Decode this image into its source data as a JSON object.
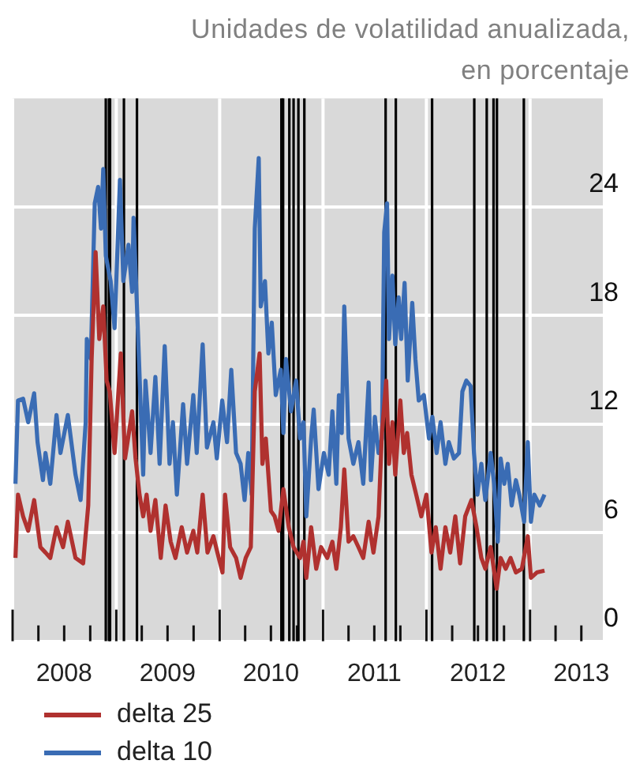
{
  "chart_data": {
    "type": "line",
    "ylabel": "Unidades de volatilidad anualizada, en porcentaje",
    "xlim": [
      "2008-01-01",
      "2013-09-15"
    ],
    "ylim": [
      0,
      30
    ],
    "yticks": [
      0,
      6,
      12,
      18,
      24
    ],
    "xticks": [
      {
        "value": "2008-01-01",
        "label": null
      },
      {
        "value": "2008-04-01",
        "label": null
      },
      {
        "value": "2008-07-01",
        "label": "2008"
      },
      {
        "value": "2008-10-01",
        "label": null
      },
      {
        "value": "2009-01-01",
        "label": null
      },
      {
        "value": "2009-04-01",
        "label": null
      },
      {
        "value": "2009-07-01",
        "label": "2009"
      },
      {
        "value": "2009-10-01",
        "label": null
      },
      {
        "value": "2010-01-01",
        "label": null
      },
      {
        "value": "2010-04-01",
        "label": null
      },
      {
        "value": "2010-07-01",
        "label": "2010"
      },
      {
        "value": "2010-10-01",
        "label": null
      },
      {
        "value": "2011-01-01",
        "label": null
      },
      {
        "value": "2011-04-01",
        "label": null
      },
      {
        "value": "2011-07-01",
        "label": "2011"
      },
      {
        "value": "2011-10-01",
        "label": null
      },
      {
        "value": "2012-01-01",
        "label": null
      },
      {
        "value": "2012-04-01",
        "label": null
      },
      {
        "value": "2012-07-01",
        "label": "2012"
      },
      {
        "value": "2012-10-01",
        "label": null
      },
      {
        "value": "2013-01-01",
        "label": null
      },
      {
        "value": "2013-04-01",
        "label": null
      },
      {
        "value": "2013-07-01",
        "label": "2013"
      }
    ],
    "grid": true,
    "legend": "bottom",
    "series": [
      {
        "name": "delta 25",
        "color": "#b0312f",
        "x": [
          "2008-01-11",
          "2008-01-20",
          "2008-02-07",
          "2008-02-25",
          "2008-03-17",
          "2008-04-08",
          "2008-04-26",
          "2008-05-13",
          "2008-06-04",
          "2008-06-27",
          "2008-07-14",
          "2008-08-10",
          "2008-09-06",
          "2008-09-24",
          "2008-10-06",
          "2008-10-20",
          "2008-11-02",
          "2008-11-16",
          "2008-11-28",
          "2008-12-09",
          "2008-12-26",
          "2009-01-17",
          "2009-02-01",
          "2009-02-26",
          "2009-03-10",
          "2009-03-24",
          "2009-04-06",
          "2009-04-18",
          "2009-05-02",
          "2009-05-19",
          "2009-06-07",
          "2009-06-24",
          "2009-07-12",
          "2009-07-29",
          "2009-08-20",
          "2009-09-08",
          "2009-09-30",
          "2009-10-14",
          "2009-11-02",
          "2009-11-19",
          "2009-12-10",
          "2009-12-24",
          "2010-01-11",
          "2010-01-20",
          "2010-02-07",
          "2010-02-28",
          "2010-03-16",
          "2010-04-03",
          "2010-04-21",
          "2010-05-05",
          "2010-05-22",
          "2010-06-01",
          "2010-06-13",
          "2010-07-01",
          "2010-07-14",
          "2010-07-28",
          "2010-08-14",
          "2010-09-02",
          "2010-09-19",
          "2010-10-12",
          "2010-10-24",
          "2010-11-03",
          "2010-11-20",
          "2010-12-08",
          "2010-12-25",
          "2011-01-16",
          "2011-02-03",
          "2011-02-17",
          "2011-03-05",
          "2011-03-17",
          "2011-04-01",
          "2011-04-18",
          "2011-05-06",
          "2011-05-23",
          "2011-06-11",
          "2011-06-28",
          "2011-07-16",
          "2011-07-28",
          "2011-08-12",
          "2011-08-22",
          "2011-09-03",
          "2011-09-13",
          "2011-10-01",
          "2011-10-13",
          "2011-10-25",
          "2011-11-09",
          "2011-11-26",
          "2011-12-14",
          "2012-01-01",
          "2012-01-19",
          "2012-02-03",
          "2012-02-20",
          "2012-03-08",
          "2012-03-25",
          "2012-04-12",
          "2012-04-29",
          "2012-05-17",
          "2012-06-08",
          "2012-06-26",
          "2012-07-13",
          "2012-07-27",
          "2012-08-15",
          "2012-09-05",
          "2012-09-19",
          "2012-10-07",
          "2012-10-24",
          "2012-11-12",
          "2012-12-03",
          "2012-12-24",
          "2013-01-04",
          "2013-01-25",
          "2013-02-21"
        ],
        "values": [
          4.6,
          8.1,
          6.9,
          6.1,
          7.8,
          5.2,
          4.9,
          4.6,
          6.3,
          5.2,
          6.6,
          4.6,
          4.3,
          7.5,
          15.6,
          21.5,
          16.7,
          18.5,
          14.4,
          13.8,
          10.4,
          15.9,
          10.1,
          12.7,
          10.1,
          8.1,
          6.9,
          8.1,
          6.1,
          7.8,
          4.6,
          7.5,
          5.5,
          4.6,
          6.3,
          4.9,
          6.1,
          4.9,
          8.1,
          4.9,
          5.8,
          4.9,
          3.8,
          8.1,
          5.2,
          4.6,
          3.5,
          4.6,
          5.2,
          13.8,
          15.9,
          9.8,
          11.2,
          7.2,
          6.9,
          6.1,
          8.4,
          6.3,
          5.2,
          4.6,
          5.5,
          3.5,
          6.3,
          4.0,
          5.2,
          4.6,
          5.5,
          4.0,
          6.3,
          9.5,
          5.5,
          5.8,
          5.2,
          4.6,
          6.6,
          4.9,
          6.9,
          11.5,
          14.4,
          9.8,
          12.1,
          9.2,
          13.3,
          10.4,
          11.5,
          9.2,
          8.1,
          6.9,
          8.1,
          4.9,
          6.3,
          4.0,
          6.3,
          4.9,
          6.9,
          4.3,
          6.9,
          7.8,
          6.3,
          4.6,
          4.0,
          5.2,
          2.9,
          4.6,
          4.0,
          4.6,
          3.8,
          4.0,
          5.8,
          3.5,
          3.8,
          3.9
        ]
      },
      {
        "name": "delta 10",
        "color": "#3a6cb4",
        "x": [
          "2008-01-11",
          "2008-01-20",
          "2008-02-07",
          "2008-02-25",
          "2008-03-17",
          "2008-03-29",
          "2008-04-17",
          "2008-04-26",
          "2008-05-13",
          "2008-06-04",
          "2008-06-18",
          "2008-07-14",
          "2008-08-10",
          "2008-08-28",
          "2008-09-15",
          "2008-09-19",
          "2008-10-03",
          "2008-10-17",
          "2008-10-29",
          "2008-11-08",
          "2008-11-16",
          "2008-11-25",
          "2008-12-12",
          "2008-12-26",
          "2009-01-14",
          "2009-01-26",
          "2009-02-13",
          "2009-02-26",
          "2009-03-03",
          "2009-03-18",
          "2009-04-06",
          "2009-04-14",
          "2009-05-02",
          "2009-05-19",
          "2009-06-03",
          "2009-06-21",
          "2009-07-08",
          "2009-07-20",
          "2009-08-03",
          "2009-08-25",
          "2009-09-08",
          "2009-09-30",
          "2009-10-12",
          "2009-11-02",
          "2009-11-17",
          "2009-12-10",
          "2009-12-22",
          "2010-01-10",
          "2010-01-27",
          "2010-02-11",
          "2010-02-28",
          "2010-03-16",
          "2010-03-30",
          "2010-04-12",
          "2010-04-24",
          "2010-05-05",
          "2010-05-19",
          "2010-05-26",
          "2010-06-10",
          "2010-06-22",
          "2010-07-04",
          "2010-07-18",
          "2010-08-05",
          "2010-08-14",
          "2010-08-23",
          "2010-09-10",
          "2010-09-28",
          "2010-10-12",
          "2010-10-24",
          "2010-11-03",
          "2010-11-20",
          "2010-11-29",
          "2010-12-16",
          "2011-01-04",
          "2011-01-21",
          "2011-02-03",
          "2011-02-17",
          "2011-02-26",
          "2011-03-08",
          "2011-03-17",
          "2011-04-01",
          "2011-04-18",
          "2011-05-06",
          "2011-05-23",
          "2011-06-11",
          "2011-06-19",
          "2011-07-03",
          "2011-07-16",
          "2011-07-28",
          "2011-08-05",
          "2011-08-15",
          "2011-08-22",
          "2011-09-03",
          "2011-09-13",
          "2011-09-25",
          "2011-10-04",
          "2011-10-16",
          "2011-10-27",
          "2011-11-12",
          "2011-11-23",
          "2011-12-05",
          "2011-12-23",
          "2012-01-10",
          "2012-01-22",
          "2012-02-06",
          "2012-02-20",
          "2012-03-08",
          "2012-03-20",
          "2012-04-07",
          "2012-04-25",
          "2012-05-07",
          "2012-05-21",
          "2012-06-05",
          "2012-06-17",
          "2012-06-29",
          "2012-07-13",
          "2012-07-27",
          "2012-08-15",
          "2012-08-27",
          "2012-09-09",
          "2012-09-19",
          "2012-10-02",
          "2012-10-14",
          "2012-10-28",
          "2012-11-12",
          "2012-11-24",
          "2012-12-11",
          "2012-12-24",
          "2013-01-04",
          "2013-01-16",
          "2013-02-04",
          "2013-02-21"
        ],
        "values": [
          8.7,
          13.3,
          13.4,
          12.1,
          13.7,
          11.0,
          8.9,
          10.4,
          8.7,
          12.5,
          10.4,
          12.5,
          9.2,
          7.8,
          12.1,
          16.7,
          15.6,
          24.2,
          25.1,
          22.8,
          26.1,
          21.3,
          19.9,
          17.3,
          25.5,
          19.9,
          21.9,
          19.3,
          23.4,
          17.3,
          9.2,
          14.4,
          10.4,
          14.6,
          9.8,
          16.3,
          9.8,
          12.1,
          8.1,
          13.1,
          9.8,
          13.6,
          10.4,
          16.4,
          10.7,
          12.1,
          10.1,
          13.3,
          11.0,
          15.0,
          10.4,
          9.8,
          7.8,
          10.4,
          8.1,
          22.8,
          26.7,
          18.5,
          19.9,
          15.9,
          17.6,
          13.6,
          15.0,
          11.5,
          15.6,
          12.7,
          14.4,
          11.2,
          12.1,
          6.9,
          11.2,
          12.8,
          8.4,
          10.4,
          9.2,
          12.7,
          8.7,
          13.6,
          11.5,
          18.5,
          11.2,
          9.8,
          11.0,
          8.7,
          14.3,
          8.9,
          12.4,
          10.4,
          11.2,
          22.6,
          24.2,
          16.7,
          20.2,
          16.4,
          19.0,
          16.7,
          19.8,
          14.4,
          18.7,
          15.6,
          13.3,
          13.6,
          11.2,
          12.4,
          10.4,
          12.1,
          9.8,
          11.0,
          10.1,
          10.4,
          13.8,
          14.4,
          14.1,
          10.4,
          8.1,
          9.8,
          7.8,
          10.4,
          8.7,
          5.5,
          10.1,
          8.7,
          9.8,
          7.5,
          8.9,
          8.1,
          6.6,
          11.0,
          6.6,
          8.1,
          7.5,
          8.1
        ]
      }
    ],
    "ref_lines": [
      {
        "axis": "x",
        "value": "2008-11-25",
        "color": "#000000"
      },
      {
        "axis": "x",
        "value": "2008-12-06",
        "color": "#000000"
      },
      {
        "axis": "x",
        "value": "2008-12-10",
        "color": "#000000"
      },
      {
        "axis": "x",
        "value": "2009-01-28",
        "color": "#000000"
      },
      {
        "axis": "x",
        "value": "2009-03-15",
        "color": "#000000"
      },
      {
        "axis": "x",
        "value": "2010-08-07",
        "color": "#000000"
      },
      {
        "axis": "x",
        "value": "2010-08-13",
        "color": "#000000"
      },
      {
        "axis": "x",
        "value": "2010-09-04",
        "color": "#000000"
      },
      {
        "axis": "x",
        "value": "2010-09-19",
        "color": "#000000"
      },
      {
        "axis": "x",
        "value": "2010-10-06",
        "color": "#000000"
      },
      {
        "axis": "x",
        "value": "2010-10-27",
        "color": "#000000"
      },
      {
        "axis": "x",
        "value": "2011-08-10",
        "color": "#000000"
      },
      {
        "axis": "x",
        "value": "2011-09-15",
        "color": "#000000"
      },
      {
        "axis": "x",
        "value": "2012-01-21",
        "color": "#000000"
      },
      {
        "axis": "x",
        "value": "2012-06-18",
        "color": "#000000"
      },
      {
        "axis": "x",
        "value": "2012-08-01",
        "color": "#000000"
      },
      {
        "axis": "x",
        "value": "2012-08-25",
        "color": "#000000"
      },
      {
        "axis": "x",
        "value": "2012-09-06",
        "color": "#000000"
      },
      {
        "axis": "x",
        "value": "2012-12-10",
        "color": "#000000"
      }
    ]
  }
}
